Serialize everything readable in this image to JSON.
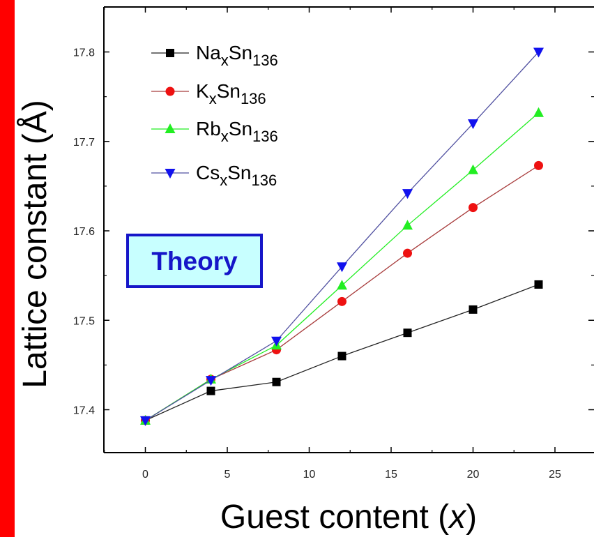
{
  "chart_data": {
    "type": "line",
    "xlabel": "Guest content (",
    "xlabel_var": "x",
    "xlabel_close": ")",
    "ylabel": "Lattice constant (Å)",
    "xlim": [
      -5,
      27
    ],
    "ylim": [
      17.35,
      17.85
    ],
    "x_ticks": [
      "0",
      "5",
      "10",
      "15",
      "20",
      "25"
    ],
    "y_ticks": [
      "17.4",
      "17.5",
      "17.6",
      "17.7",
      "17.8"
    ],
    "x": [
      0,
      4,
      8,
      12,
      16,
      20,
      24
    ],
    "annotation": "Theory",
    "series": [
      {
        "name": "NaxSn136",
        "legend": {
          "el": "Na",
          "sub1": "x",
          "mid": "Sn",
          "sub2": "136"
        },
        "color": "#000000",
        "line_color": "#222222",
        "marker": "square",
        "values": [
          17.388,
          17.421,
          17.431,
          17.46,
          17.486,
          17.512,
          17.54
        ]
      },
      {
        "name": "KxSn136",
        "legend": {
          "el": "K",
          "sub1": "x",
          "mid": "Sn",
          "sub2": "136"
        },
        "color": "#ee1111",
        "line_color": "#a83c3c",
        "marker": "circle",
        "values": [
          17.388,
          17.434,
          17.467,
          17.521,
          17.575,
          17.626,
          17.673
        ]
      },
      {
        "name": "RbxSn136",
        "legend": {
          "el": "Rb",
          "sub1": "x",
          "mid": "Sn",
          "sub2": "136"
        },
        "color": "#22ee22",
        "line_color": "#22ee22",
        "marker": "triangle-up",
        "values": [
          17.388,
          17.434,
          17.472,
          17.539,
          17.606,
          17.668,
          17.732
        ]
      },
      {
        "name": "CsxSn136",
        "legend": {
          "el": "Cs",
          "sub1": "x",
          "mid": "Sn",
          "sub2": "136"
        },
        "color": "#1111ee",
        "line_color": "#5050a0",
        "marker": "triangle-down",
        "values": [
          17.388,
          17.433,
          17.477,
          17.56,
          17.642,
          17.72,
          17.8
        ]
      }
    ]
  }
}
